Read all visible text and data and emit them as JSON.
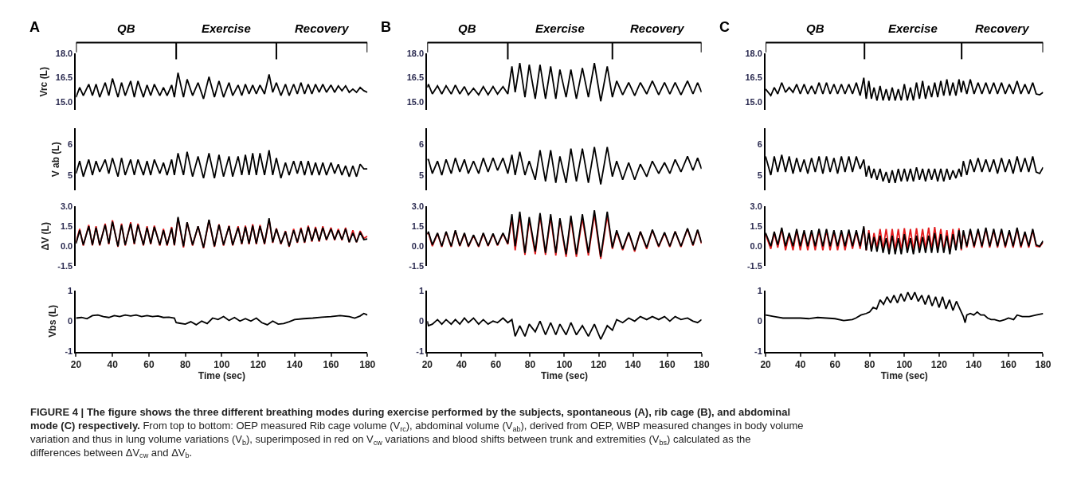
{
  "chart_data": [
    {
      "type": "line",
      "ylabel": "Vrc (L)",
      "xlim": [
        20,
        180
      ],
      "ylim": [
        14.5,
        18.0
      ],
      "yticks": [
        {
          "value": 15,
          "label": "15.0"
        },
        16.5,
        {
          "value": 18,
          "label": "18.0"
        }
      ],
      "tick_labels": "y",
      "ref_lines": [
        {
          "axis": "x",
          "value": 75
        },
        {
          "axis": "x",
          "value": 130
        }
      ],
      "annotations": [
        "A",
        "QB",
        "Exercise",
        "Recovery",
        "FIGURE 4 | The figure shows the three different breathing modes during exercise performed by the subjects, spontaneous (A), rib cage (B), and abdominal mode (C) respectively.",
        "From top to bottom: OEP measured Rib cage volume (V$_{rc}$), abdominal volume (V$_{ab}$), derived from OEP, WBP measured changes in body volume variation and thus in lung volume variations (V$_{b}$), superimposed in red on V$_{cw}$ variations and blood shifts between trunk and extremities (V$_{bs}$) calculated as the differences between ΔV$_{cw}$ and ΔV$_{b}$."
      ],
      "x": [
        20,
        22,
        24,
        27,
        29,
        31,
        33,
        36,
        38,
        40,
        43,
        45,
        47,
        50,
        52,
        54,
        57,
        59,
        61,
        63,
        66,
        68,
        70,
        72.5,
        74,
        76,
        79,
        81,
        84,
        87,
        90,
        93,
        96,
        98.5,
        101,
        104,
        106,
        109,
        111,
        113,
        115,
        117,
        119,
        121,
        123.5,
        126,
        128,
        130,
        132.5,
        135,
        137,
        139.5,
        141.5,
        143.5,
        145.5,
        147.5,
        149.5,
        151.5,
        153.5,
        155.5,
        157.5,
        160,
        162,
        164,
        166,
        168,
        170,
        172,
        174,
        176,
        178,
        180
      ],
      "series": [
        {
          "color": "#000000",
          "values": [
            15.3,
            15.9,
            15.4,
            16.1,
            15.4,
            16.1,
            15.3,
            16.2,
            15.4,
            16.45,
            15.3,
            16.2,
            15.4,
            16.3,
            15.3,
            16.3,
            15.3,
            16.05,
            15.4,
            16.1,
            15.4,
            15.9,
            15.4,
            16.05,
            15.3,
            16.8,
            15.3,
            16.4,
            15.4,
            16.2,
            15.2,
            16.55,
            15.3,
            16.3,
            15.3,
            16.2,
            15.4,
            16.05,
            15.4,
            16.1,
            15.5,
            16.05,
            15.5,
            16.05,
            15.5,
            16.7,
            15.6,
            16.2,
            15.4,
            16.1,
            15.4,
            16.1,
            15.5,
            16.2,
            15.5,
            16.1,
            15.5,
            16.1,
            15.6,
            16.1,
            15.6,
            16.05,
            15.6,
            16.0,
            15.7,
            16.0,
            15.6,
            15.8,
            15.6,
            15.9,
            15.7,
            15.6
          ]
        }
      ]
    },
    {
      "type": "line",
      "ylabel": "V ab (L)",
      "xlim": [
        20,
        180
      ],
      "ylim": [
        4.5,
        6.5
      ],
      "yticks": [
        5,
        6
      ],
      "tick_labels": "y",
      "x": [
        20,
        22,
        24,
        27,
        29,
        31,
        33,
        36,
        38,
        40,
        43,
        45,
        47,
        50,
        52,
        54,
        57,
        59,
        61,
        63,
        66,
        68,
        70,
        72.5,
        74,
        76,
        79,
        81,
        84,
        87,
        90,
        93,
        96,
        98.5,
        101,
        104,
        106,
        109,
        111,
        113,
        115,
        117,
        119,
        121,
        123.5,
        126,
        128,
        130,
        132.5,
        135,
        137,
        139.5,
        141.5,
        143.5,
        145.5,
        147.5,
        149.5,
        151.5,
        153.5,
        155.5,
        157.5,
        160,
        162,
        164,
        166,
        168,
        170,
        172,
        174,
        176,
        178,
        180
      ],
      "series": [
        {
          "color": "#000000",
          "values": [
            5.05,
            5.45,
            4.95,
            5.5,
            5.0,
            5.45,
            5.1,
            5.5,
            5.05,
            5.55,
            4.95,
            5.55,
            5.0,
            5.5,
            5.0,
            5.5,
            5.0,
            5.45,
            5.0,
            5.5,
            5.05,
            5.4,
            5.0,
            5.5,
            5.0,
            5.7,
            5.0,
            5.75,
            4.95,
            5.6,
            4.9,
            5.7,
            4.9,
            5.65,
            4.95,
            5.6,
            4.95,
            5.6,
            5.0,
            5.65,
            5.0,
            5.7,
            5.0,
            5.7,
            5.0,
            5.8,
            5.0,
            5.55,
            4.9,
            5.4,
            5.0,
            5.45,
            5.05,
            5.45,
            5.0,
            5.45,
            5.0,
            5.4,
            5.0,
            5.4,
            5.0,
            5.4,
            5.05,
            5.35,
            5.0,
            5.3,
            4.95,
            5.3,
            4.95,
            5.35,
            5.2,
            5.2
          ]
        }
      ]
    },
    {
      "type": "line",
      "ylabel": "ΔV (L)",
      "xlim": [
        20,
        180
      ],
      "ylim": [
        -1.5,
        3.0
      ],
      "yticks": [
        -1.5,
        {
          "value": 0,
          "label": "0.0"
        },
        1.5,
        {
          "value": 3,
          "label": "3.0"
        }
      ],
      "tick_labels": "y",
      "x": [
        20,
        22,
        24,
        27,
        29,
        31,
        33,
        36,
        38,
        40,
        43,
        45,
        47,
        50,
        52,
        54,
        57,
        59,
        61,
        63,
        66,
        68,
        70,
        72.5,
        74,
        76,
        79,
        81,
        84,
        87,
        90,
        93,
        96,
        98.5,
        101,
        104,
        106,
        109,
        111,
        113,
        115,
        117,
        119,
        121,
        123.5,
        126,
        128,
        130,
        132.5,
        135,
        137,
        139.5,
        141.5,
        143.5,
        145.5,
        147.5,
        149.5,
        151.5,
        153.5,
        155.5,
        157.5,
        160,
        162,
        164,
        166,
        168,
        170,
        172,
        174,
        176,
        178,
        180
      ],
      "series": [
        {
          "color": "#e31a1c",
          "values": [
            0.3,
            1.3,
            0.05,
            1.6,
            0.05,
            1.5,
            0.05,
            1.7,
            0.15,
            1.95,
            -0.05,
            1.7,
            0.05,
            1.8,
            0.15,
            1.7,
            0.05,
            1.5,
            0.15,
            1.55,
            0.05,
            1.3,
            0.05,
            1.45,
            0.05,
            2.1,
            -0.1,
            1.8,
            0.05,
            1.5,
            -0.15,
            1.95,
            -0.05,
            1.65,
            0.05,
            1.55,
            0.05,
            1.5,
            0.15,
            1.55,
            0.15,
            1.65,
            0.15,
            1.6,
            0.15,
            2.0,
            0.25,
            1.35,
            0.15,
            1.15,
            -0.05,
            1.3,
            0.25,
            1.4,
            0.25,
            1.55,
            0.35,
            1.45,
            0.35,
            1.5,
            0.45,
            1.4,
            0.45,
            1.3,
            0.45,
            1.4,
            0.3,
            1.2,
            0.3,
            1.15,
            0.6,
            0.75
          ]
        },
        {
          "color": "#000000",
          "values": [
            0.2,
            1.2,
            0.1,
            1.5,
            0.1,
            1.4,
            0.1,
            1.6,
            0.2,
            1.85,
            0.0,
            1.6,
            0.1,
            1.7,
            0.2,
            1.6,
            0.1,
            1.4,
            0.2,
            1.45,
            0.1,
            1.2,
            0.1,
            1.35,
            0.1,
            2.2,
            0.0,
            1.8,
            0.1,
            1.5,
            -0.1,
            2.0,
            0.0,
            1.6,
            0.1,
            1.5,
            0.1,
            1.4,
            0.2,
            1.45,
            0.2,
            1.55,
            0.2,
            1.5,
            0.2,
            2.1,
            0.3,
            1.3,
            0.2,
            1.1,
            0.0,
            1.2,
            0.3,
            1.3,
            0.3,
            1.45,
            0.4,
            1.35,
            0.4,
            1.4,
            0.5,
            1.3,
            0.5,
            1.2,
            0.5,
            1.3,
            0.3,
            1.0,
            0.3,
            1.05,
            0.5,
            0.55
          ]
        }
      ]
    },
    {
      "type": "line",
      "ylabel": "Vbs (L)",
      "xlabel": "Time (sec)",
      "xlim": [
        20,
        180
      ],
      "xticks": [
        20,
        40,
        60,
        80,
        100,
        120,
        140,
        160,
        180
      ],
      "ylim": [
        -1,
        1
      ],
      "yticks": [
        -1,
        0,
        1
      ],
      "x": [
        20,
        23,
        26,
        29,
        32,
        35,
        38,
        41,
        44,
        47,
        50,
        53,
        56,
        59,
        62,
        65,
        68,
        71,
        74,
        75,
        77,
        80,
        83,
        86,
        89,
        92,
        95,
        98,
        101,
        104,
        107,
        110,
        113,
        116,
        119,
        122,
        125,
        128,
        131,
        134,
        137,
        140,
        145,
        150,
        155,
        160,
        165,
        170,
        173,
        176,
        178,
        180
      ],
      "series": [
        {
          "color": "#000000",
          "values": [
            0.1,
            0.12,
            0.08,
            0.18,
            0.2,
            0.15,
            0.12,
            0.18,
            0.15,
            0.2,
            0.17,
            0.2,
            0.15,
            0.18,
            0.15,
            0.17,
            0.12,
            0.13,
            0.1,
            -0.05,
            -0.07,
            -0.1,
            -0.02,
            -0.12,
            0.0,
            -0.08,
            0.1,
            0.05,
            0.15,
            0.02,
            0.12,
            0.0,
            0.08,
            0.0,
            0.1,
            -0.05,
            -0.12,
            0.0,
            -0.1,
            -0.08,
            -0.02,
            0.05,
            0.08,
            0.1,
            0.13,
            0.15,
            0.18,
            0.15,
            0.1,
            0.17,
            0.25,
            0.2
          ]
        }
      ]
    },
    {
      "type": "line",
      "xlim": [
        20,
        180
      ],
      "ylim": [
        14.5,
        18.0
      ],
      "yticks": [
        {
          "value": 15,
          "label": "15.0"
        },
        16.5,
        {
          "value": 18,
          "label": "18.0"
        }
      ],
      "tick_labels": "y",
      "ref_lines": [
        {
          "axis": "x",
          "value": 67
        },
        {
          "axis": "x",
          "value": 128
        }
      ],
      "annotations": [
        "B",
        "QB",
        "Exercise",
        "Recovery"
      ],
      "x": [
        20,
        20.7,
        23,
        26,
        28.5,
        31,
        34,
        36.4,
        39,
        41.7,
        44,
        47,
        50,
        52.7,
        55.5,
        58.4,
        61,
        64.2,
        67,
        69.4,
        71.3,
        74,
        77,
        79.5,
        83,
        85.8,
        89,
        92,
        95,
        97.4,
        101,
        103.8,
        107,
        110.5,
        114,
        117.5,
        121.2,
        125,
        128,
        130.5,
        134,
        137.5,
        141,
        144.3,
        148,
        151.3,
        155,
        158.4,
        161.5,
        164.6,
        168,
        171.8,
        175,
        177.7,
        180
      ],
      "series": [
        {
          "color": "#000000",
          "values": [
            15.9,
            16.1,
            15.5,
            16.0,
            15.5,
            16.0,
            15.5,
            16.05,
            15.5,
            15.95,
            15.45,
            15.85,
            15.45,
            15.95,
            15.45,
            15.95,
            15.5,
            15.95,
            15.5,
            17.2,
            15.6,
            17.4,
            15.3,
            17.3,
            15.2,
            17.3,
            15.2,
            17.2,
            15.2,
            17.0,
            15.3,
            17.0,
            15.2,
            17.1,
            15.3,
            17.4,
            15.05,
            17.2,
            15.3,
            16.3,
            15.45,
            16.2,
            15.4,
            16.2,
            15.5,
            16.3,
            15.45,
            16.2,
            15.5,
            16.2,
            15.45,
            16.3,
            15.5,
            16.2,
            15.6
          ]
        }
      ]
    },
    {
      "type": "line",
      "xlim": [
        20,
        180
      ],
      "ylim": [
        4.5,
        6.5
      ],
      "yticks": [
        5,
        6
      ],
      "tick_labels": "y",
      "x": [
        20,
        20.7,
        23,
        26,
        28.5,
        31,
        34,
        36.4,
        39,
        41.7,
        44,
        47,
        50,
        52.7,
        55.5,
        58.4,
        61,
        64.2,
        67,
        69.4,
        71.3,
        74,
        77,
        79.5,
        83,
        85.8,
        89,
        92,
        95,
        97.4,
        101,
        103.8,
        107,
        110.5,
        114,
        117.5,
        121.2,
        125,
        128,
        130.5,
        134,
        137.5,
        141,
        144.3,
        148,
        151.3,
        155,
        158.4,
        161.5,
        164.6,
        168,
        171.8,
        175,
        177.7,
        180
      ],
      "series": [
        {
          "color": "#000000",
          "values": [
            5.5,
            5.5,
            5.05,
            5.45,
            5.0,
            5.5,
            5.05,
            5.55,
            5.1,
            5.5,
            5.05,
            5.45,
            5.05,
            5.55,
            5.1,
            5.55,
            5.15,
            5.55,
            5.05,
            5.65,
            5.0,
            5.75,
            5.0,
            5.45,
            4.85,
            5.8,
            4.8,
            5.8,
            4.75,
            5.6,
            4.75,
            5.85,
            4.8,
            5.85,
            4.75,
            5.9,
            4.7,
            5.9,
            4.95,
            5.45,
            4.85,
            5.4,
            4.85,
            5.35,
            4.95,
            5.45,
            5.05,
            5.4,
            5.05,
            5.5,
            5.1,
            5.6,
            5.15,
            5.55,
            5.2
          ]
        }
      ]
    },
    {
      "type": "line",
      "xlim": [
        20,
        180
      ],
      "ylim": [
        -1.5,
        3.0
      ],
      "yticks": [
        -1.5,
        {
          "value": 0,
          "label": "0.0"
        },
        1.5,
        {
          "value": 3,
          "label": "3.0"
        }
      ],
      "tick_labels": "y",
      "x": [
        20,
        20.7,
        23,
        26,
        28.5,
        31,
        34,
        36.4,
        39,
        41.7,
        44,
        47,
        50,
        52.7,
        55.5,
        58.4,
        61,
        64.2,
        67,
        69.4,
        71.3,
        74,
        77,
        79.5,
        83,
        85.8,
        89,
        92,
        95,
        97.4,
        101,
        103.8,
        107,
        110.5,
        114,
        117.5,
        121.2,
        125,
        128,
        130.5,
        134,
        137.5,
        141,
        144.3,
        148,
        151.3,
        155,
        158.4,
        161.5,
        164.6,
        168,
        171.8,
        175,
        177.7,
        180
      ],
      "series": [
        {
          "color": "#e31a1c",
          "values": [
            0.9,
            1.0,
            0.0,
            0.95,
            -0.05,
            1.05,
            -0.05,
            1.15,
            0.0,
            0.95,
            -0.05,
            0.8,
            -0.05,
            0.95,
            0.0,
            0.9,
            0.05,
            0.95,
            0.15,
            2.1,
            -0.3,
            2.3,
            -0.65,
            2.0,
            -0.6,
            2.3,
            -0.65,
            2.2,
            -0.7,
            2.0,
            -0.8,
            2.1,
            -0.8,
            2.1,
            -0.7,
            2.4,
            -0.95,
            2.3,
            -0.2,
            1.1,
            -0.3,
            1.0,
            -0.4,
            1.1,
            -0.2,
            1.2,
            -0.05,
            1.0,
            -0.05,
            1.1,
            -0.05,
            1.3,
            0.05,
            1.2,
            0.2
          ]
        },
        {
          "color": "#000000",
          "values": [
            0.9,
            1.1,
            0.1,
            1.0,
            0.0,
            1.1,
            0.0,
            1.2,
            0.05,
            1.0,
            0.0,
            0.85,
            0.0,
            1.0,
            0.05,
            0.95,
            0.1,
            1.0,
            0.2,
            2.4,
            0.0,
            2.6,
            -0.5,
            2.2,
            -0.4,
            2.5,
            -0.5,
            2.4,
            -0.5,
            2.1,
            -0.6,
            2.3,
            -0.6,
            2.4,
            -0.5,
            2.7,
            -0.8,
            2.6,
            -0.1,
            1.2,
            -0.2,
            1.05,
            -0.3,
            1.1,
            -0.1,
            1.25,
            0.0,
            1.05,
            0.0,
            1.1,
            0.0,
            1.35,
            0.1,
            1.25,
            0.25
          ]
        }
      ]
    },
    {
      "type": "line",
      "xlabel": "Time (sec)",
      "xlim": [
        20,
        180
      ],
      "xticks": [
        20,
        40,
        60,
        80,
        100,
        120,
        140,
        160,
        180
      ],
      "ylim": [
        -1,
        1
      ],
      "yticks": [
        -1,
        0,
        1
      ],
      "x": [
        20,
        20.7,
        23,
        26,
        28.5,
        31,
        34,
        36.4,
        39,
        41.7,
        44,
        47,
        50,
        52.7,
        55.5,
        58.4,
        61,
        64.2,
        67,
        69.4,
        71.3,
        74,
        77,
        79.5,
        83,
        85.8,
        89,
        92,
        95,
        97.4,
        101,
        103.8,
        107,
        110.5,
        114,
        117.5,
        121.2,
        125,
        128,
        130.5,
        134,
        137.5,
        141,
        144.3,
        148,
        151.3,
        155,
        158.4,
        161.5,
        164.6,
        168,
        171.8,
        175,
        177.7,
        180
      ],
      "series": [
        {
          "color": "#000000",
          "values": [
            0.0,
            -0.15,
            -0.1,
            0.05,
            -0.1,
            0.05,
            -0.1,
            0.05,
            -0.1,
            0.1,
            -0.05,
            0.1,
            -0.1,
            0.05,
            -0.1,
            0.0,
            -0.05,
            0.1,
            -0.05,
            0.05,
            -0.5,
            -0.15,
            -0.5,
            -0.1,
            -0.35,
            0.0,
            -0.45,
            -0.05,
            -0.45,
            -0.1,
            -0.45,
            -0.05,
            -0.45,
            -0.15,
            -0.5,
            -0.1,
            -0.6,
            -0.15,
            -0.3,
            0.05,
            -0.05,
            0.1,
            0.0,
            0.15,
            0.05,
            0.15,
            0.05,
            0.15,
            0.0,
            0.15,
            0.05,
            0.1,
            0.0,
            -0.05,
            0.05
          ]
        }
      ]
    },
    {
      "type": "line",
      "xlim": [
        20,
        180
      ],
      "ylim": [
        14.5,
        18.0
      ],
      "yticks": [
        {
          "value": 15,
          "label": "15.0"
        },
        16.5,
        {
          "value": 18,
          "label": "18.0"
        }
      ],
      "tick_labels": "y",
      "ref_lines": [
        {
          "axis": "x",
          "value": 77
        },
        {
          "axis": "x",
          "value": 133
        }
      ],
      "annotations": [
        "C",
        "QB",
        "Exercise",
        "Recovery"
      ],
      "x": [
        20,
        23,
        25,
        27,
        29.3,
        31.5,
        33.6,
        35.8,
        37.9,
        40,
        42.2,
        44.3,
        46.5,
        48.6,
        50.8,
        53,
        55.1,
        57.2,
        59.4,
        61.5,
        63.7,
        65.8,
        68,
        70.1,
        72.3,
        74.5,
        76.6,
        78,
        79.5,
        81,
        82.5,
        84.2,
        86,
        87.7,
        89.5,
        91.2,
        93,
        94.7,
        96.5,
        98.2,
        100,
        101.7,
        103.5,
        105.2,
        107,
        108.7,
        110.5,
        112.2,
        114,
        115.7,
        117.5,
        119.2,
        121,
        122.7,
        124.5,
        126.2,
        128,
        129.7,
        131.5,
        132.8,
        134,
        136,
        138,
        140.2,
        142.5,
        144.7,
        147,
        149.2,
        151.5,
        153.7,
        156,
        158.2,
        160.5,
        162.7,
        165,
        167.2,
        169.5,
        171.7,
        174,
        176,
        178,
        180
      ],
      "series": [
        {
          "color": "#000000",
          "values": [
            15.8,
            15.4,
            15.9,
            15.5,
            16.2,
            15.6,
            15.9,
            15.6,
            16.1,
            15.5,
            16.1,
            15.5,
            16.0,
            15.5,
            16.2,
            15.5,
            16.2,
            15.5,
            16.1,
            15.5,
            16.1,
            15.5,
            16.1,
            15.5,
            16.2,
            15.4,
            16.5,
            15.2,
            16.3,
            15.2,
            15.9,
            15.1,
            16.0,
            15.1,
            15.8,
            15.1,
            15.9,
            15.1,
            15.8,
            15.1,
            16.1,
            15.1,
            15.9,
            15.1,
            16.2,
            15.2,
            16.3,
            15.2,
            16.0,
            15.3,
            16.2,
            15.3,
            16.3,
            15.4,
            16.4,
            15.4,
            16.2,
            15.4,
            16.4,
            15.6,
            16.3,
            15.5,
            16.4,
            15.5,
            16.2,
            15.5,
            16.2,
            15.5,
            16.2,
            15.5,
            16.2,
            15.5,
            16.1,
            15.5,
            16.3,
            15.5,
            16.1,
            15.5,
            16.2,
            15.5,
            15.45,
            15.6
          ]
        }
      ]
    },
    {
      "type": "line",
      "xlim": [
        20,
        180
      ],
      "ylim": [
        4.5,
        6.5
      ],
      "yticks": [
        5,
        6
      ],
      "tick_labels": "y",
      "x": [
        20,
        23,
        25,
        27,
        29.3,
        31.5,
        33.6,
        35.8,
        37.9,
        40,
        42.2,
        44.3,
        46.5,
        48.6,
        50.8,
        53,
        55.1,
        57.2,
        59.4,
        61.5,
        63.7,
        65.8,
        68,
        70.1,
        72.3,
        74.5,
        76.6,
        78,
        79.5,
        81,
        82.5,
        84.2,
        86,
        87.7,
        89.5,
        91.2,
        93,
        94.7,
        96.5,
        98.2,
        100,
        101.7,
        103.5,
        105.2,
        107,
        108.7,
        110.5,
        112.2,
        114,
        115.7,
        117.5,
        119.2,
        121,
        122.7,
        124.5,
        126.2,
        128,
        129.7,
        131.5,
        132.8,
        134,
        136,
        138,
        140.2,
        142.5,
        144.7,
        147,
        149.2,
        151.5,
        153.7,
        156,
        158.2,
        160.5,
        162.7,
        165,
        167.2,
        169.5,
        171.7,
        174,
        176,
        178,
        180
      ],
      "series": [
        {
          "color": "#000000",
          "values": [
            5.6,
            5.0,
            5.6,
            5.1,
            5.65,
            5.1,
            5.6,
            5.05,
            5.55,
            5.1,
            5.5,
            5.05,
            5.55,
            5.1,
            5.6,
            5.05,
            5.6,
            5.1,
            5.55,
            5.05,
            5.6,
            5.1,
            5.6,
            5.1,
            5.6,
            5.2,
            5.5,
            4.95,
            5.3,
            4.9,
            5.2,
            4.85,
            5.2,
            4.8,
            5.1,
            4.75,
            5.15,
            4.75,
            5.2,
            4.8,
            5.2,
            4.8,
            5.2,
            4.8,
            5.25,
            4.85,
            5.2,
            4.8,
            5.2,
            4.85,
            5.2,
            4.8,
            5.2,
            4.8,
            5.2,
            4.85,
            5.15,
            4.9,
            5.2,
            4.95,
            5.45,
            5.0,
            5.5,
            5.1,
            5.55,
            5.1,
            5.5,
            5.1,
            5.5,
            5.05,
            5.55,
            5.1,
            5.5,
            5.05,
            5.6,
            5.1,
            5.55,
            5.1,
            5.6,
            5.1,
            5.05,
            5.25
          ]
        }
      ]
    },
    {
      "type": "line",
      "xlim": [
        20,
        180
      ],
      "ylim": [
        -1.5,
        3.0
      ],
      "yticks": [
        -1.5,
        {
          "value": 0,
          "label": "0.0"
        },
        1.5,
        {
          "value": 3,
          "label": "3.0"
        }
      ],
      "tick_labels": "y",
      "x": [
        20,
        23,
        25,
        27,
        29.3,
        31.5,
        33.6,
        35.8,
        37.9,
        40,
        42.2,
        44.3,
        46.5,
        48.6,
        50.8,
        53,
        55.1,
        57.2,
        59.4,
        61.5,
        63.7,
        65.8,
        68,
        70.1,
        72.3,
        74.5,
        76.6,
        78,
        79.5,
        81,
        82.5,
        84.2,
        86,
        87.7,
        89.5,
        91.2,
        93,
        94.7,
        96.5,
        98.2,
        100,
        101.7,
        103.5,
        105.2,
        107,
        108.7,
        110.5,
        112.2,
        114,
        115.7,
        117.5,
        119.2,
        121,
        122.7,
        124.5,
        126.2,
        128,
        129.7,
        131.5,
        132.8,
        134,
        136,
        138,
        140.2,
        142.5,
        144.7,
        147,
        149.2,
        151.5,
        153.7,
        156,
        158.2,
        160.5,
        162.7,
        165,
        167.2,
        169.5,
        171.7,
        174,
        176,
        178,
        180
      ],
      "series": [
        {
          "color": "#e31a1c",
          "values": [
            0.9,
            -0.2,
            1.0,
            -0.1,
            1.3,
            -0.3,
            0.9,
            -0.3,
            1.2,
            -0.3,
            1.1,
            -0.3,
            1.1,
            -0.3,
            1.2,
            -0.3,
            1.2,
            -0.3,
            1.1,
            -0.3,
            1.1,
            -0.3,
            1.1,
            -0.2,
            1.1,
            -0.2,
            1.4,
            -0.3,
            1.2,
            -0.3,
            1.0,
            -0.1,
            1.3,
            -0.2,
            1.3,
            -0.3,
            1.3,
            -0.3,
            1.3,
            -0.3,
            1.35,
            -0.2,
            1.3,
            -0.3,
            1.35,
            -0.2,
            1.3,
            -0.2,
            1.4,
            -0.2,
            1.45,
            -0.2,
            1.3,
            -0.3,
            1.2,
            -0.4,
            1.3,
            -0.2,
            1.35,
            -0.3,
            1.1,
            -0.1,
            1.2,
            -0.1,
            1.2,
            -0.1,
            1.3,
            -0.1,
            1.2,
            -0.1,
            1.2,
            -0.1,
            1.1,
            -0.1,
            1.3,
            -0.1,
            1.0,
            -0.1,
            1.2,
            0.0,
            -0.05,
            0.3
          ]
        },
        {
          "color": "#000000",
          "values": [
            1.0,
            0.0,
            1.1,
            0.1,
            1.4,
            0.0,
            1.0,
            0.0,
            1.3,
            0.0,
            1.2,
            0.0,
            1.2,
            0.0,
            1.3,
            0.0,
            1.3,
            0.0,
            1.2,
            0.0,
            1.2,
            0.0,
            1.25,
            0.0,
            1.2,
            0.0,
            1.5,
            -0.3,
            1.0,
            -0.4,
            0.7,
            -0.4,
            0.8,
            -0.5,
            0.6,
            -0.6,
            0.8,
            -0.6,
            0.6,
            -0.6,
            0.9,
            -0.5,
            0.6,
            -0.6,
            0.8,
            -0.5,
            0.7,
            -0.5,
            0.8,
            -0.5,
            1.0,
            -0.5,
            0.9,
            -0.5,
            0.8,
            -0.6,
            0.9,
            -0.3,
            1.2,
            -0.2,
            1.2,
            0.0,
            1.3,
            0.0,
            1.3,
            0.0,
            1.4,
            0.0,
            1.3,
            0.0,
            1.3,
            0.0,
            1.2,
            0.0,
            1.4,
            0.0,
            1.1,
            0.0,
            1.3,
            0.1,
            0.0,
            0.4
          ]
        }
      ]
    },
    {
      "type": "line",
      "xlabel": "Time (sec)",
      "xlim": [
        20,
        180
      ],
      "xticks": [
        20,
        40,
        60,
        80,
        100,
        120,
        140,
        160,
        180
      ],
      "ylim": [
        -1,
        1
      ],
      "yticks": [
        -1,
        0,
        1
      ],
      "x": [
        20,
        25,
        30,
        35,
        40,
        45,
        50,
        55,
        60,
        65,
        70,
        72,
        75,
        78,
        80,
        82,
        84,
        86,
        88,
        90,
        92,
        94,
        96,
        98,
        100,
        102,
        104,
        106,
        108,
        110,
        112,
        114,
        116,
        118,
        120,
        122,
        124,
        126,
        128,
        130,
        132,
        134,
        135,
        136,
        138,
        140,
        142,
        144,
        146,
        148,
        150,
        152,
        155,
        158,
        160,
        163,
        165,
        168,
        172,
        176,
        180
      ],
      "series": [
        {
          "color": "#000000",
          "values": [
            0.2,
            0.15,
            0.1,
            0.1,
            0.1,
            0.08,
            0.12,
            0.1,
            0.08,
            0.02,
            0.05,
            0.1,
            0.2,
            0.25,
            0.3,
            0.45,
            0.4,
            0.7,
            0.55,
            0.8,
            0.6,
            0.85,
            0.6,
            0.9,
            0.65,
            0.95,
            0.7,
            0.95,
            0.65,
            0.85,
            0.55,
            0.85,
            0.5,
            0.8,
            0.45,
            0.8,
            0.4,
            0.7,
            0.35,
            0.65,
            0.4,
            0.15,
            -0.05,
            0.2,
            0.25,
            0.2,
            0.3,
            0.2,
            0.2,
            0.1,
            0.05,
            0.05,
            0.0,
            0.05,
            0.1,
            0.05,
            0.2,
            0.15,
            0.15,
            0.2,
            0.25
          ]
        }
      ]
    }
  ]
}
